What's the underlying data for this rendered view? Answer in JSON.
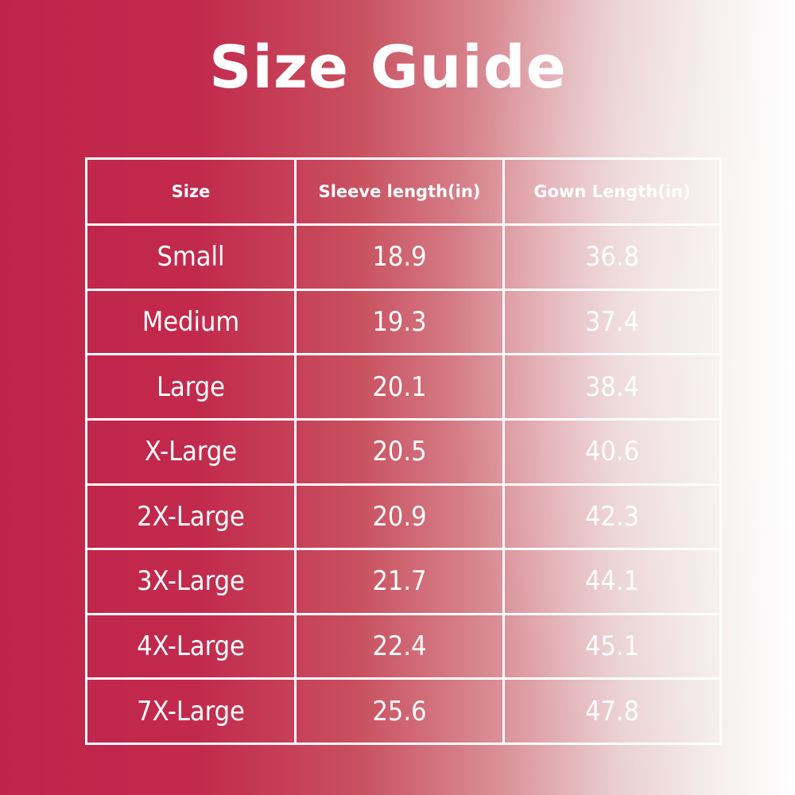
{
  "header": {
    "title": "Size Guide"
  },
  "table": {
    "columns": [
      "Size",
      "Sleeve length(in)",
      "Gown Length(in)"
    ],
    "rows": [
      [
        "Small",
        18.9,
        36.8
      ],
      [
        "Medium",
        19.3,
        37.4
      ],
      [
        "Large",
        20.1,
        38.4
      ],
      [
        "X-Large",
        20.5,
        40.6
      ],
      [
        "2X-Large",
        20.9,
        42.3
      ],
      [
        "3X-Large",
        21.7,
        44.1
      ],
      [
        "4X-Large",
        22.4,
        45.1
      ],
      [
        "7X-Large",
        25.6,
        47.8
      ]
    ]
  }
}
